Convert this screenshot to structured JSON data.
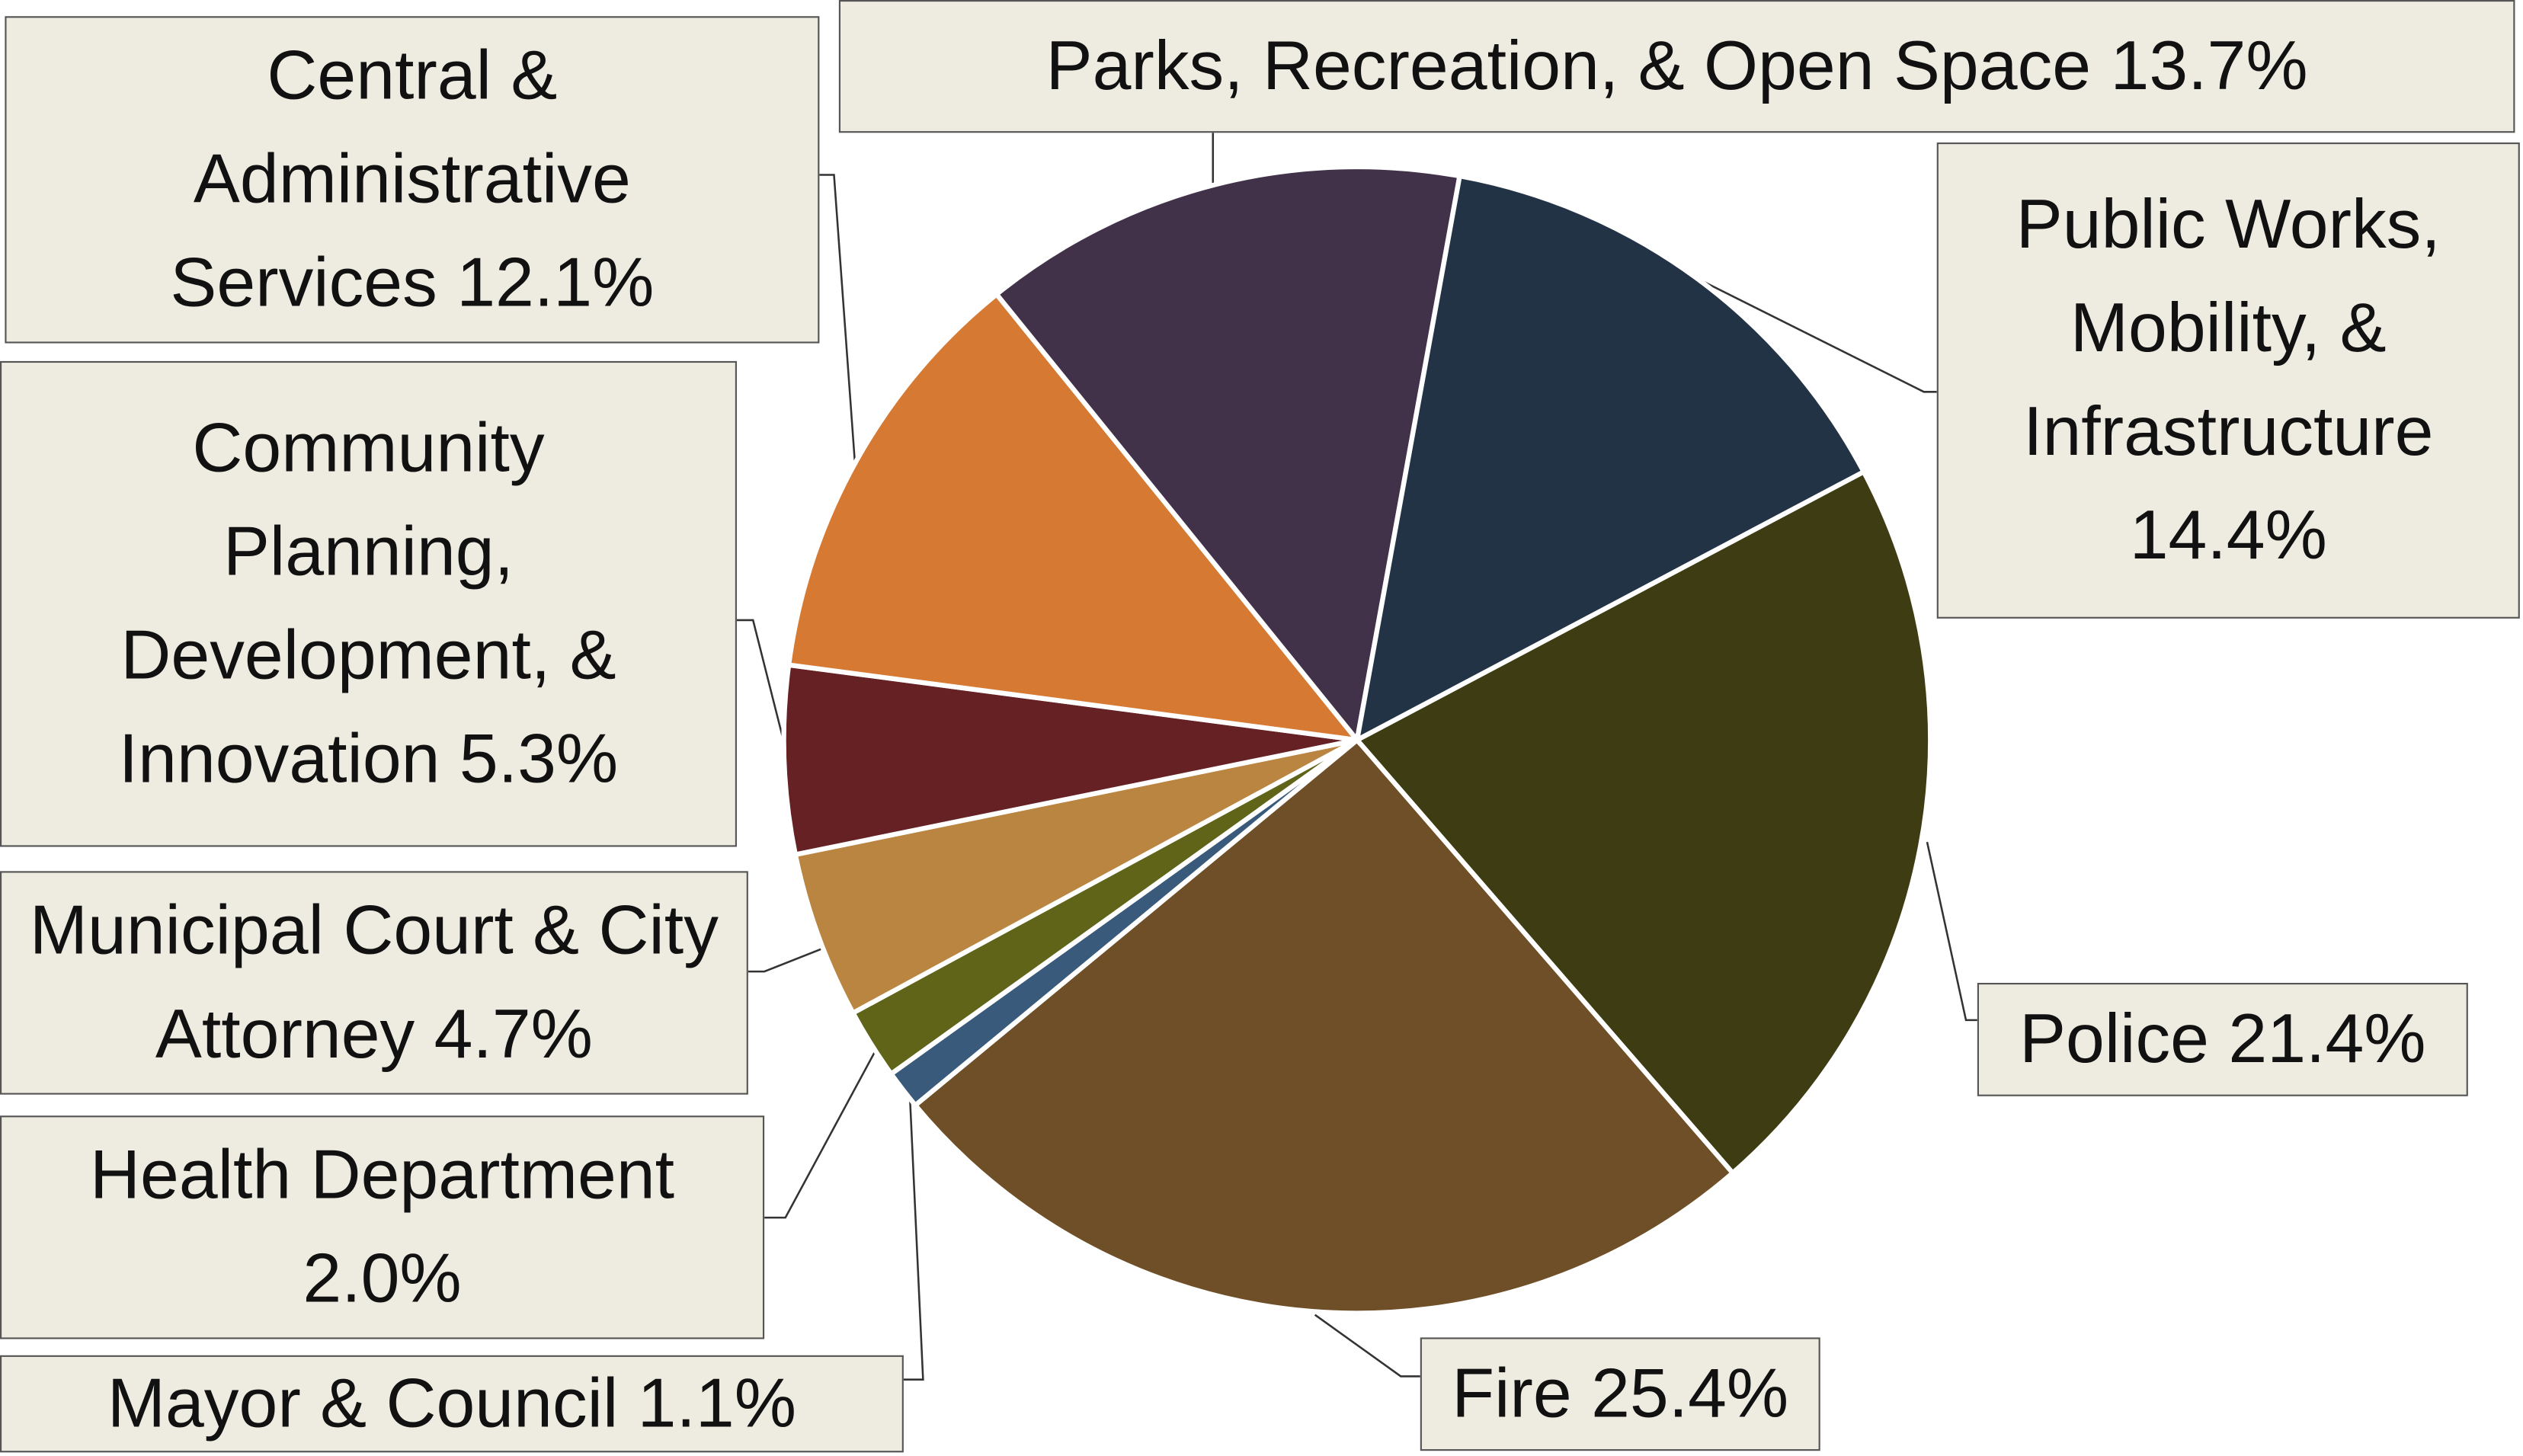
{
  "chart_data": {
    "type": "pie",
    "categories": [
      "Police",
      "Fire",
      "Mayor & Council",
      "Health Department",
      "Municipal Court & City Attorney",
      "Community Planning, Development, & Innovation",
      "Central & Administrative Services",
      "Parks, Recreation, & Open Space",
      "Public Works, Mobility, & Infrastructure"
    ],
    "values": [
      21.4,
      25.4,
      1.1,
      2.0,
      4.7,
      5.3,
      12.1,
      13.7,
      14.4
    ],
    "value_labels": [
      "21.4%",
      "25.4%",
      "1.1%",
      "2.0%",
      "4.7%",
      "5.3%",
      "12.1%",
      "13.7%",
      "14.4%"
    ],
    "colors": [
      "#3e3c12",
      "#6f4f28",
      "#395a7a",
      "#5f6419",
      "#b98540",
      "#652123",
      "#d67932",
      "#41324a",
      "#213345"
    ]
  }
}
